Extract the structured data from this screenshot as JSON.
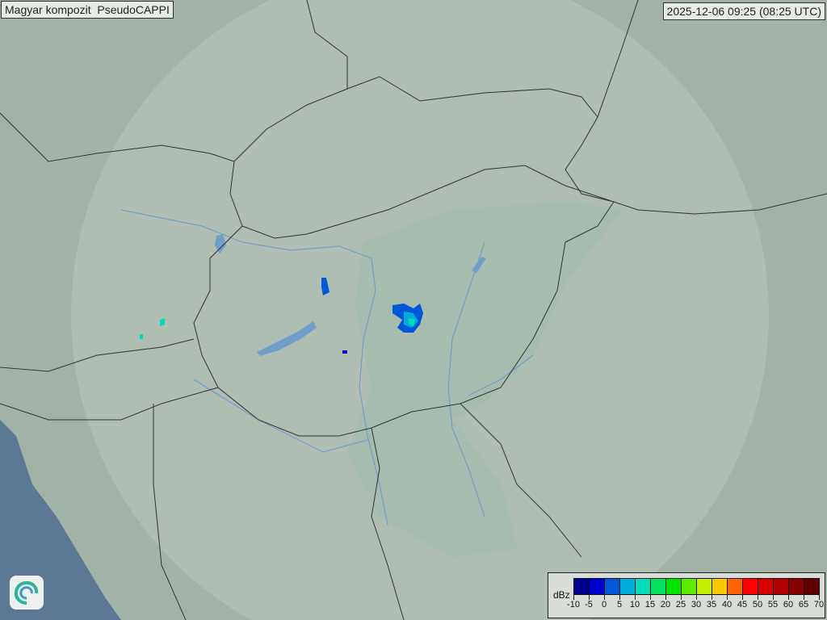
{
  "title": "Magyar kompozit  PseudoCAPPI",
  "timestamp": "2025-12-06 09:25 (08:25 UTC)",
  "legend": {
    "unit": "dBz",
    "ticks": [
      "-10",
      "-5",
      "0",
      "5",
      "10",
      "15",
      "20",
      "25",
      "30",
      "35",
      "40",
      "45",
      "50",
      "55",
      "60",
      "65",
      "70"
    ],
    "colors": [
      "#000090",
      "#0000d0",
      "#0058d8",
      "#00acd8",
      "#00dcb8",
      "#00e060",
      "#00e400",
      "#60ea00",
      "#c4f000",
      "#f8c800",
      "#ff6400",
      "#ff0000",
      "#d80000",
      "#b00000",
      "#880000",
      "#600000"
    ]
  },
  "map": {
    "land_color": "#a3b2a7",
    "coverage_color": "#b9c7bc",
    "plain_color": "#9fbaad",
    "sea_color": "#5b7894",
    "border_color": "#333333",
    "river_color": "#6f9fc8"
  },
  "logo": {
    "icon": "swirl-logo-icon"
  }
}
